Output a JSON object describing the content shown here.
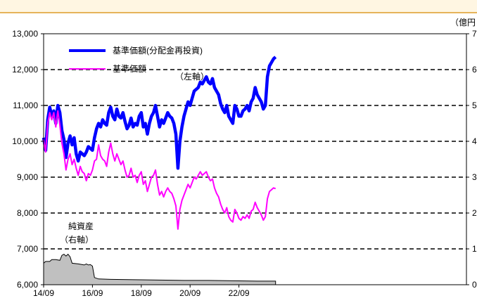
{
  "header": {
    "band_color": "#fff6e2",
    "border_color": "#e6b45a"
  },
  "chart_data": {
    "type": "line",
    "y_left": {
      "range": [
        6000,
        13000
      ],
      "ticks": [
        "6,000",
        "7,000",
        "8,000",
        "9,000",
        "10,000",
        "11,000",
        "12,000",
        "13,000"
      ]
    },
    "y_right": {
      "unit": "（億円",
      "range": [
        0,
        7
      ],
      "ticks": [
        "0",
        "1",
        "2",
        "3",
        "4",
        "5",
        "6",
        "7"
      ]
    },
    "x": {
      "ticks": [
        "14/09",
        "16/09",
        "18/09",
        "20/09",
        "22/09"
      ]
    },
    "grid": {
      "style": "dashed-horizontal"
    },
    "legend": {
      "placement": "top-left",
      "entries": [
        {
          "label": "基準価額(分配金再投資)",
          "color": "#0000ff"
        },
        {
          "label": "基準価額",
          "color": "#ff00ff"
        }
      ]
    },
    "annotations": {
      "left_axis": "（左軸）",
      "net_assets_label": [
        "純資産",
        "（右軸）"
      ]
    },
    "series": [
      {
        "name": "基準価額(分配金再投資)",
        "axis": "left",
        "color": "#0000ff",
        "points": [
          [
            "2014-09",
            10100
          ],
          [
            "2014-10",
            9750
          ],
          [
            "2014-11",
            10600
          ],
          [
            "2014-12",
            10950
          ],
          [
            "2015-01",
            10700
          ],
          [
            "2015-02",
            10850
          ],
          [
            "2015-03",
            10500
          ],
          [
            "2015-04",
            11000
          ],
          [
            "2015-05",
            10800
          ],
          [
            "2015-06",
            10300
          ],
          [
            "2015-07",
            10050
          ],
          [
            "2015-08",
            9550
          ],
          [
            "2015-09",
            9950
          ],
          [
            "2015-10",
            10150
          ],
          [
            "2015-11",
            9900
          ],
          [
            "2015-12",
            10100
          ],
          [
            "2016-01",
            9650
          ],
          [
            "2016-02",
            9450
          ],
          [
            "2016-03",
            9700
          ],
          [
            "2016-04",
            9650
          ],
          [
            "2016-05",
            9600
          ],
          [
            "2016-06",
            9700
          ],
          [
            "2016-07",
            9850
          ],
          [
            "2016-08",
            9800
          ],
          [
            "2016-09",
            9750
          ],
          [
            "2016-10",
            10100
          ],
          [
            "2016-11",
            10350
          ],
          [
            "2016-12",
            10500
          ],
          [
            "2017-01",
            10400
          ],
          [
            "2017-02",
            10600
          ],
          [
            "2017-03",
            10500
          ],
          [
            "2017-04",
            10450
          ],
          [
            "2017-05",
            10800
          ],
          [
            "2017-06",
            10950
          ],
          [
            "2017-07",
            10700
          ],
          [
            "2017-08",
            10600
          ],
          [
            "2017-09",
            10900
          ],
          [
            "2017-10",
            10700
          ],
          [
            "2017-11",
            10650
          ],
          [
            "2017-12",
            10800
          ],
          [
            "2018-01",
            10550
          ],
          [
            "2018-02",
            10350
          ],
          [
            "2018-03",
            10450
          ],
          [
            "2018-04",
            10650
          ],
          [
            "2018-05",
            10400
          ],
          [
            "2018-06",
            10500
          ],
          [
            "2018-07",
            10450
          ],
          [
            "2018-08",
            10700
          ],
          [
            "2018-09",
            10800
          ],
          [
            "2018-10",
            10400
          ],
          [
            "2018-11",
            10500
          ],
          [
            "2018-12",
            10200
          ],
          [
            "2019-01",
            10500
          ],
          [
            "2019-02",
            10700
          ],
          [
            "2019-03",
            10800
          ],
          [
            "2019-04",
            11000
          ],
          [
            "2019-05",
            10700
          ],
          [
            "2019-06",
            10400
          ],
          [
            "2019-07",
            10600
          ],
          [
            "2019-08",
            10500
          ],
          [
            "2019-09",
            10650
          ],
          [
            "2019-10",
            10800
          ],
          [
            "2019-11",
            10700
          ],
          [
            "2019-12",
            10650
          ],
          [
            "2020-01",
            10500
          ],
          [
            "2020-02",
            10200
          ],
          [
            "2020-03",
            9250
          ],
          [
            "2020-04",
            10000
          ],
          [
            "2020-05",
            10400
          ],
          [
            "2020-06",
            10700
          ],
          [
            "2020-07",
            10900
          ],
          [
            "2020-08",
            11100
          ],
          [
            "2020-09",
            11000
          ],
          [
            "2020-10",
            11200
          ],
          [
            "2020-11",
            11400
          ],
          [
            "2020-12",
            11450
          ],
          [
            "2021-01",
            11500
          ],
          [
            "2021-02",
            11650
          ],
          [
            "2021-03",
            11600
          ],
          [
            "2021-04",
            11700
          ],
          [
            "2021-05",
            11800
          ],
          [
            "2021-06",
            11650
          ],
          [
            "2021-07",
            11600
          ],
          [
            "2021-08",
            11750
          ],
          [
            "2021-09",
            11500
          ],
          [
            "2021-10",
            11400
          ],
          [
            "2021-11",
            11300
          ],
          [
            "2021-12",
            11050
          ],
          [
            "2022-01",
            10900
          ],
          [
            "2022-02",
            10800
          ],
          [
            "2022-03",
            11000
          ],
          [
            "2022-04",
            10700
          ],
          [
            "2022-05",
            10600
          ],
          [
            "2022-06",
            10500
          ],
          [
            "2022-07",
            11000
          ],
          [
            "2022-08",
            10900
          ],
          [
            "2022-09",
            10700
          ],
          [
            "2022-10",
            10700
          ],
          [
            "2022-11",
            10850
          ],
          [
            "2022-12",
            10900
          ],
          [
            "2023-01",
            11000
          ],
          [
            "2023-02",
            10850
          ],
          [
            "2023-03",
            11100
          ],
          [
            "2023-04",
            11200
          ],
          [
            "2023-05",
            11500
          ],
          [
            "2023-06",
            11300
          ],
          [
            "2023-07",
            11200
          ],
          [
            "2023-08",
            11100
          ],
          [
            "2023-09",
            10900
          ],
          [
            "2023-10",
            11000
          ],
          [
            "2023-11",
            11800
          ],
          [
            "2023-12",
            12100
          ],
          [
            "2024-01",
            12200
          ],
          [
            "2024-02",
            12300
          ],
          [
            "2024-03",
            12350
          ]
        ]
      },
      {
        "name": "基準価額",
        "axis": "left",
        "color": "#ff00ff",
        "points": [
          [
            "2014-09",
            10050
          ],
          [
            "2014-10",
            9700
          ],
          [
            "2014-11",
            10500
          ],
          [
            "2014-12",
            10800
          ],
          [
            "2015-01",
            10600
          ],
          [
            "2015-02",
            10800
          ],
          [
            "2015-03",
            10400
          ],
          [
            "2015-04",
            10850
          ],
          [
            "2015-05",
            10450
          ],
          [
            "2015-06",
            9950
          ],
          [
            "2015-07",
            9650
          ],
          [
            "2015-08",
            9200
          ],
          [
            "2015-09",
            9500
          ],
          [
            "2015-10",
            9650
          ],
          [
            "2015-11",
            9350
          ],
          [
            "2015-12",
            9500
          ],
          [
            "2016-01",
            9250
          ],
          [
            "2016-02",
            9050
          ],
          [
            "2016-03",
            9300
          ],
          [
            "2016-04",
            9150
          ],
          [
            "2016-05",
            9100
          ],
          [
            "2016-06",
            8900
          ],
          [
            "2016-07",
            9100
          ],
          [
            "2016-08",
            9050
          ],
          [
            "2016-09",
            9200
          ],
          [
            "2016-10",
            9450
          ],
          [
            "2016-11",
            9500
          ],
          [
            "2016-12",
            9900
          ],
          [
            "2017-01",
            9600
          ],
          [
            "2017-02",
            9500
          ],
          [
            "2017-03",
            9450
          ],
          [
            "2017-04",
            9300
          ],
          [
            "2017-05",
            9700
          ],
          [
            "2017-06",
            9950
          ],
          [
            "2017-07",
            9650
          ],
          [
            "2017-08",
            9450
          ],
          [
            "2017-09",
            9650
          ],
          [
            "2017-10",
            9500
          ],
          [
            "2017-11",
            9350
          ],
          [
            "2017-12",
            9450
          ],
          [
            "2018-01",
            9200
          ],
          [
            "2018-02",
            9000
          ],
          [
            "2018-03",
            9050
          ],
          [
            "2018-04",
            9250
          ],
          [
            "2018-05",
            9000
          ],
          [
            "2018-06",
            9050
          ],
          [
            "2018-07",
            8850
          ],
          [
            "2018-08",
            9050
          ],
          [
            "2018-09",
            9150
          ],
          [
            "2018-10",
            8800
          ],
          [
            "2018-11",
            8900
          ],
          [
            "2018-12",
            8600
          ],
          [
            "2019-01",
            8800
          ],
          [
            "2019-02",
            9000
          ],
          [
            "2019-03",
            9050
          ],
          [
            "2019-04",
            9200
          ],
          [
            "2019-05",
            8800
          ],
          [
            "2019-06",
            8500
          ],
          [
            "2019-07",
            8600
          ],
          [
            "2019-08",
            8450
          ],
          [
            "2019-09",
            8600
          ],
          [
            "2019-10",
            8700
          ],
          [
            "2019-11",
            8600
          ],
          [
            "2019-12",
            8550
          ],
          [
            "2020-01",
            8400
          ],
          [
            "2020-02",
            8200
          ],
          [
            "2020-03",
            7550
          ],
          [
            "2020-04",
            8100
          ],
          [
            "2020-05",
            8350
          ],
          [
            "2020-06",
            8500
          ],
          [
            "2020-07",
            8650
          ],
          [
            "2020-08",
            8800
          ],
          [
            "2020-09",
            8700
          ],
          [
            "2020-10",
            8850
          ],
          [
            "2020-11",
            9000
          ],
          [
            "2020-12",
            8950
          ],
          [
            "2021-01",
            9050
          ],
          [
            "2021-02",
            9150
          ],
          [
            "2021-03",
            9050
          ],
          [
            "2021-04",
            9100
          ],
          [
            "2021-05",
            9150
          ],
          [
            "2021-06",
            9000
          ],
          [
            "2021-07",
            8900
          ],
          [
            "2021-08",
            8950
          ],
          [
            "2021-09",
            8700
          ],
          [
            "2021-10",
            8550
          ],
          [
            "2021-11",
            8450
          ],
          [
            "2021-12",
            8250
          ],
          [
            "2022-01",
            8100
          ],
          [
            "2022-02",
            8000
          ],
          [
            "2022-03",
            8150
          ],
          [
            "2022-04",
            7900
          ],
          [
            "2022-05",
            7800
          ],
          [
            "2022-06",
            7750
          ],
          [
            "2022-07",
            8100
          ],
          [
            "2022-08",
            8000
          ],
          [
            "2022-09",
            7850
          ],
          [
            "2022-10",
            7800
          ],
          [
            "2022-11",
            7900
          ],
          [
            "2022-12",
            7850
          ],
          [
            "2023-01",
            7950
          ],
          [
            "2023-02",
            7850
          ],
          [
            "2023-03",
            8050
          ],
          [
            "2023-04",
            8100
          ],
          [
            "2023-05",
            8300
          ],
          [
            "2023-06",
            8150
          ],
          [
            "2023-07",
            8050
          ],
          [
            "2023-08",
            7950
          ],
          [
            "2023-09",
            7800
          ],
          [
            "2023-10",
            7900
          ],
          [
            "2023-11",
            8400
          ],
          [
            "2023-12",
            8600
          ],
          [
            "2024-01",
            8650
          ],
          [
            "2024-02",
            8700
          ],
          [
            "2024-03",
            8680
          ]
        ]
      },
      {
        "name": "純資産",
        "axis": "right",
        "type": "area",
        "color": "#c0c0c0",
        "points": [
          [
            "2014-09",
            0.6
          ],
          [
            "2014-10",
            0.65
          ],
          [
            "2014-12",
            0.65
          ],
          [
            "2015-01",
            0.7
          ],
          [
            "2015-03",
            0.7
          ],
          [
            "2015-05",
            0.68
          ],
          [
            "2015-06",
            0.82
          ],
          [
            "2015-07",
            0.85
          ],
          [
            "2015-08",
            0.8
          ],
          [
            "2015-09",
            0.85
          ],
          [
            "2015-10",
            0.78
          ],
          [
            "2015-11",
            0.6
          ],
          [
            "2016-02",
            0.58
          ],
          [
            "2016-03",
            0.57
          ],
          [
            "2016-05",
            0.55
          ],
          [
            "2016-06",
            0.58
          ],
          [
            "2016-07",
            0.55
          ],
          [
            "2016-08",
            0.56
          ],
          [
            "2016-09",
            0.52
          ],
          [
            "2016-10",
            0.2
          ],
          [
            "2016-12",
            0.16
          ],
          [
            "2017-06",
            0.15
          ],
          [
            "2018-06",
            0.14
          ],
          [
            "2019-06",
            0.13
          ],
          [
            "2020-06",
            0.12
          ],
          [
            "2021-06",
            0.12
          ],
          [
            "2022-06",
            0.11
          ],
          [
            "2023-06",
            0.1
          ],
          [
            "2024-03",
            0.1
          ]
        ]
      }
    ]
  }
}
